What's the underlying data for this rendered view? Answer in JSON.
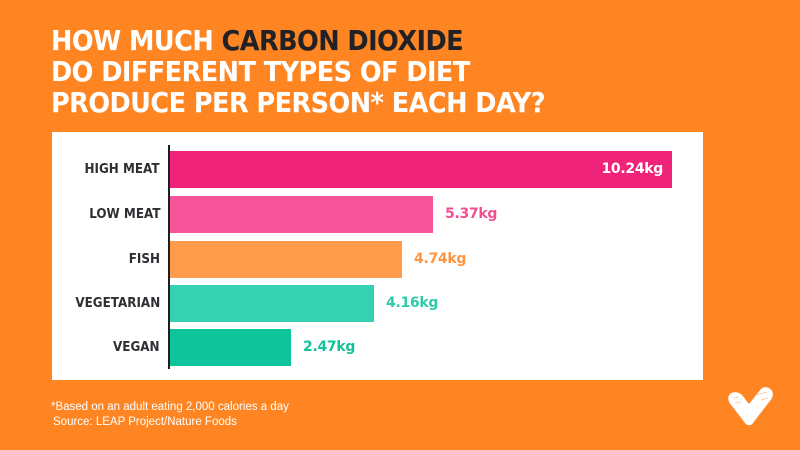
{
  "title": {
    "line1_prefix": "HOW MUCH ",
    "line1_highlight": "CARBON DIOXIDE",
    "line2": "DO DIFFERENT TYPES OF DIET",
    "line3": "PRODUCE PER PERSON* EACH DAY?"
  },
  "colors": {
    "background": "#FF8522",
    "highlight_text": "#222226",
    "category_text": "#2E2F33"
  },
  "footnote": {
    "note": "*Based on an adult eating 2,000 calories a day",
    "source": "Source: LEAP Project/Nature Foods"
  },
  "logo": {
    "icon": "heart-check-logo-icon"
  },
  "chart_data": {
    "type": "bar",
    "orientation": "horizontal",
    "title": "How much carbon dioxide do different types of diet produce per person* each day?",
    "xlabel": "",
    "ylabel": "",
    "unit": "kg",
    "categories": [
      "HIGH MEAT",
      "LOW MEAT",
      "FISH",
      "VEGETARIAN",
      "VEGAN"
    ],
    "values": [
      10.24,
      5.37,
      4.74,
      4.16,
      2.47
    ],
    "labels": [
      "10.24kg",
      "5.37kg",
      "4.74kg",
      "4.16kg",
      "2.47kg"
    ],
    "colors": [
      "#EF2377",
      "#F7559A",
      "#FF9B4A",
      "#36D1B0",
      "#0EC49A"
    ],
    "label_colors": [
      "#FFFFFF",
      "#F24F91",
      "#FF9440",
      "#2ECBA8",
      "#13C29B"
    ],
    "label_inside": [
      true,
      false,
      false,
      false,
      false
    ],
    "xlim": [
      0,
      10.5
    ],
    "grid": false,
    "legend": "none"
  }
}
